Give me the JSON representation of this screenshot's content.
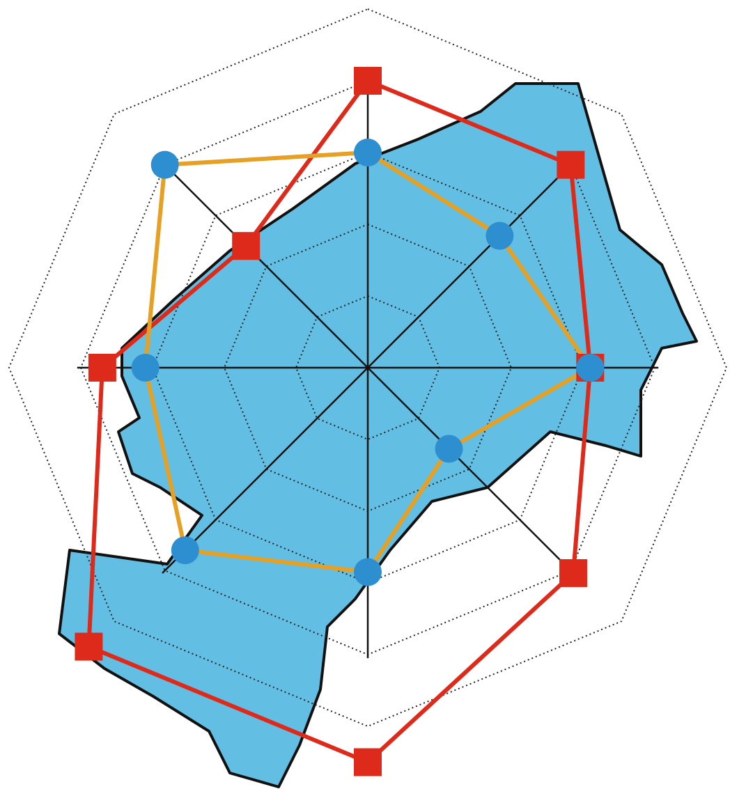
{
  "chart_data": {
    "type": "radar",
    "ylim": [
      0,
      5
    ],
    "yticks": [
      1,
      2,
      3,
      4,
      5
    ],
    "grid": true,
    "axes_count": 8,
    "series": [
      {
        "color": "#dd2a1b",
        "line_color": "#dd2a1b",
        "marker": "square",
        "values": [
          4.0,
          4.0,
          3.1,
          4.05,
          5.5,
          5.5,
          3.7,
          2.4
        ]
      },
      {
        "color": "#2e8fd0",
        "line_color": "#e6a024",
        "marker": "circle",
        "values": [
          3.0,
          2.6,
          3.1,
          1.6,
          2.85,
          3.6,
          3.1,
          4.0
        ]
      }
    ]
  }
}
